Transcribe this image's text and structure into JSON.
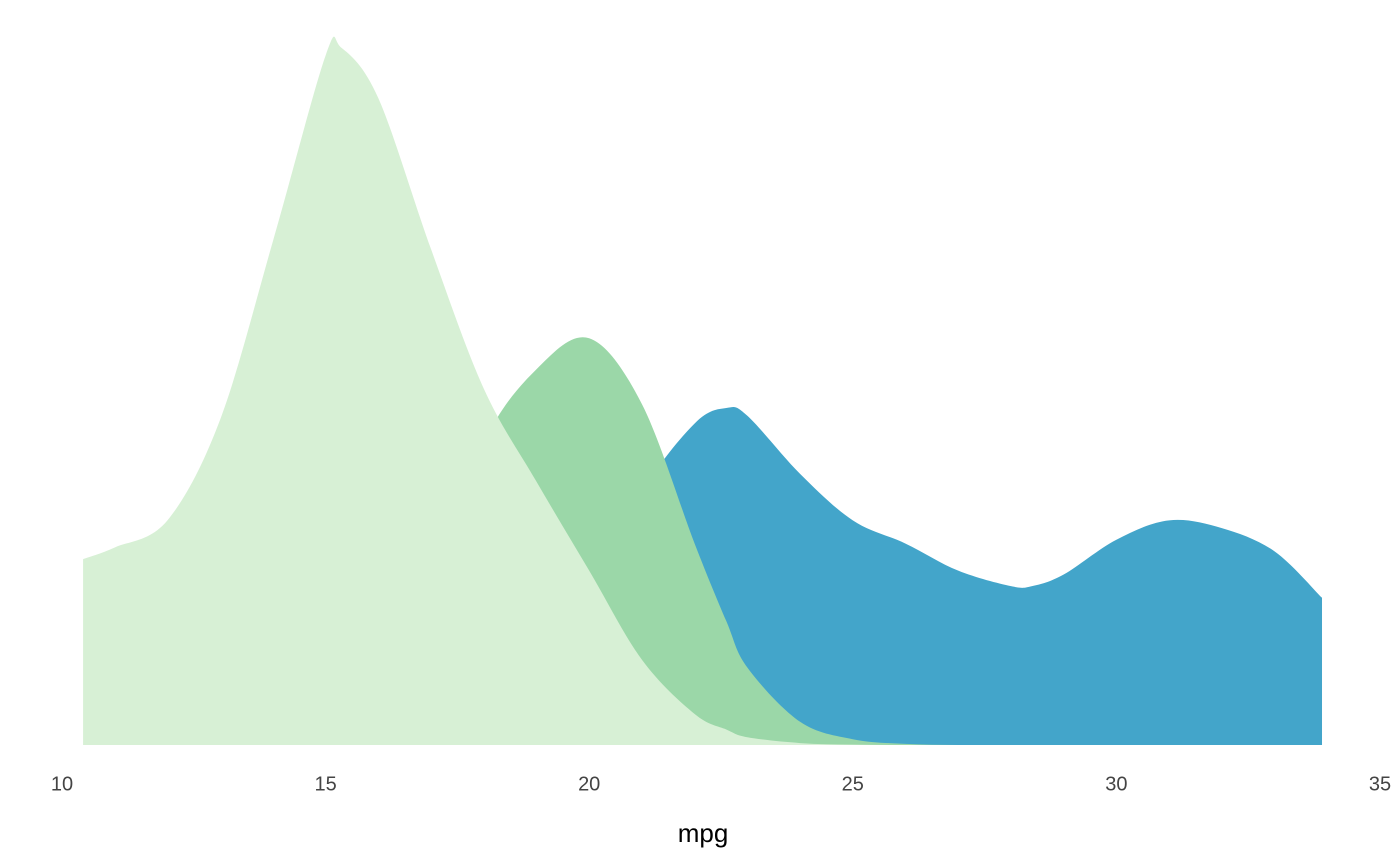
{
  "chart_data": {
    "type": "density",
    "x_label": "mpg",
    "x": [
      10.4,
      11,
      12,
      13,
      14,
      15,
      15.3,
      16,
      17,
      18,
      19,
      20,
      21,
      22,
      22.6,
      23,
      24,
      25,
      26,
      27,
      28,
      28.4,
      29,
      30,
      31,
      32,
      33,
      33.9
    ],
    "series": [
      {
        "color": "#43a5ca",
        "values": [
          0,
          0,
          0,
          0,
          0,
          0,
          0,
          0,
          0.001,
          0.003,
          0.012,
          0.035,
          0.065,
          0.083,
          0.087,
          0.085,
          0.07,
          0.058,
          0.052,
          0.045,
          0.041,
          0.041,
          0.044,
          0.053,
          0.058,
          0.056,
          0.05,
          0.038
        ]
      },
      {
        "color": "#9bd7a8",
        "values": [
          0,
          0,
          0,
          0,
          0.001,
          0.003,
          0.004,
          0.01,
          0.04,
          0.078,
          0.097,
          0.105,
          0.088,
          0.052,
          0.032,
          0.02,
          0.006,
          0.0015,
          0.0003,
          0,
          0,
          0,
          0,
          0,
          0,
          0,
          0,
          0
        ]
      },
      {
        "color": "#d7f0d5",
        "values": [
          0.048,
          0.051,
          0.058,
          0.084,
          0.13,
          0.178,
          0.18,
          0.167,
          0.128,
          0.092,
          0.068,
          0.045,
          0.022,
          0.008,
          0.004,
          0.002,
          0.0005,
          0.0001,
          0,
          0,
          0,
          0,
          0,
          0,
          0,
          0,
          0,
          0
        ]
      }
    ],
    "xlim": [
      10,
      35
    ],
    "xticks": [
      10,
      15,
      20,
      25,
      30,
      35
    ],
    "ylim": [
      0,
      0.19
    ],
    "grid": false
  }
}
